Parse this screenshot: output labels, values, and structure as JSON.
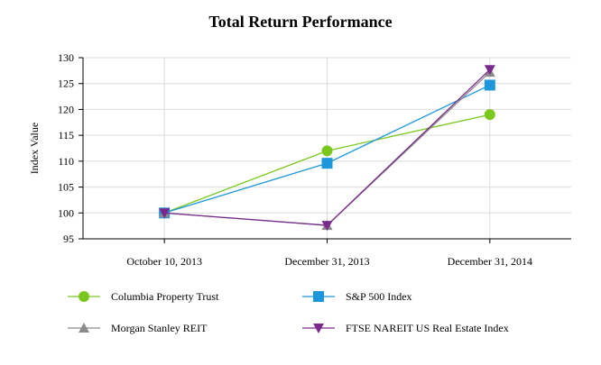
{
  "chart_data": {
    "type": "line",
    "title": "Total Return Performance",
    "xlabel": "",
    "ylabel": "Index Value",
    "ylim": [
      95,
      130
    ],
    "yticks": [
      "95",
      "100",
      "105",
      "110",
      "115",
      "120",
      "125",
      "130"
    ],
    "categories": [
      "October 10, 2013",
      "December 31, 2013",
      "December 31, 2014"
    ],
    "grid": true,
    "legend_position": "bottom",
    "series": [
      {
        "name": "Columbia Property Trust",
        "values": [
          100,
          112.0,
          119.0
        ],
        "color": "#7ac81e",
        "marker": "circle"
      },
      {
        "name": "S&P 500 Index",
        "values": [
          100,
          109.6,
          124.7
        ],
        "color": "#1e96dc",
        "marker": "square"
      },
      {
        "name": "Morgan Stanley REIT",
        "values": [
          100,
          97.6,
          127.2
        ],
        "color": "#8c8c8c",
        "marker": "triangle-up"
      },
      {
        "name": "FTSE NAREIT US Real Estate Index",
        "values": [
          100,
          97.6,
          127.7
        ],
        "color": "#7a2a8c",
        "marker": "triangle-down"
      }
    ]
  }
}
